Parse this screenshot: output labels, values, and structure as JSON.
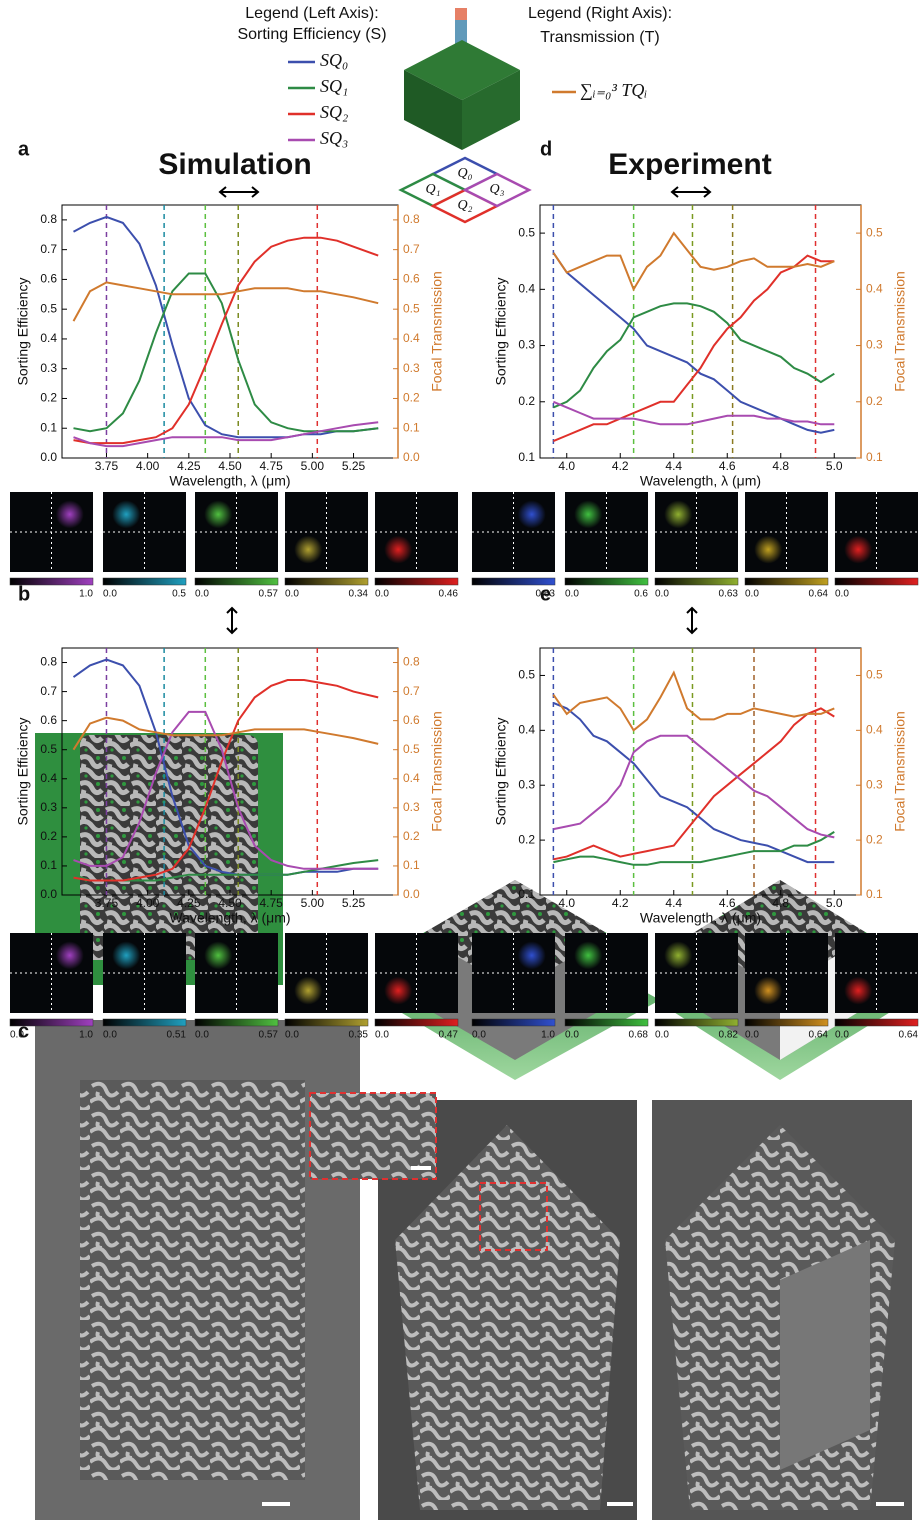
{
  "legend": {
    "left_title": "Legend (Left Axis):",
    "left_subtitle": "Sorting Efficiency (S)",
    "items": [
      {
        "label": "SQ₀",
        "color": "#3c4fad"
      },
      {
        "label": "SQ₁",
        "color": "#2e8b45"
      },
      {
        "label": "SQ₂",
        "color": "#e0302a"
      },
      {
        "label": "SQ₃",
        "color": "#a84bb0"
      }
    ],
    "right_title": "Legend (Right Axis):",
    "right_subtitle": "Transmission (T)",
    "sum_label": "∑ᵢ₌₀³ TQᵢ",
    "sum_color": "#d07a2e"
  },
  "panel_labels": [
    "a",
    "b",
    "c",
    "d",
    "e"
  ],
  "headers": [
    "Simulation",
    "Experiment"
  ],
  "quadrants": [
    "Q₀",
    "Q₁",
    "Q₂",
    "Q₃"
  ],
  "colorbar_rows": [
    [
      {
        "color": "#a040c0",
        "max": "1.0"
      },
      {
        "color": "#20a0c0",
        "min": "0.0",
        "max": "0.5"
      },
      {
        "color": "#50c040",
        "min": "0.0",
        "max": "0.57"
      },
      {
        "color": "#b0a030",
        "min": "0.0",
        "max": "0.34"
      },
      {
        "color": "#e02020",
        "min": "0.0",
        "max": "0.46"
      }
    ],
    [
      {
        "color": "#a040c0",
        "min": "0.0",
        "max": "1.0"
      },
      {
        "color": "#20a0c0",
        "min": "0.0",
        "max": "0.51"
      },
      {
        "color": "#50c040",
        "min": "0.0",
        "max": "0.57"
      },
      {
        "color": "#b0a030",
        "min": "0.0",
        "max": "0.35"
      },
      {
        "color": "#e02020",
        "min": "0.0",
        "max": "0.47"
      }
    ],
    [
      {
        "color": "#3050d0",
        "max": "0.63"
      },
      {
        "color": "#40c040",
        "min": "0.0",
        "max": "0.6"
      },
      {
        "color": "#90b030",
        "min": "0.0",
        "max": "0.63"
      },
      {
        "color": "#c0a020",
        "min": "0.0",
        "max": "0.64"
      },
      {
        "color": "#e02020",
        "min": "0.0"
      }
    ],
    [
      {
        "color": "#3050d0",
        "min": "0.0",
        "max": "1.0"
      },
      {
        "color": "#40c040",
        "min": "0.0",
        "max": "0.68"
      },
      {
        "color": "#90b030",
        "min": "0.0",
        "max": "0.82"
      },
      {
        "color": "#d09020",
        "min": "0.0",
        "max": "0.64"
      },
      {
        "color": "#e02020",
        "min": "0.0",
        "max": "0.64"
      }
    ]
  ],
  "chart_data": [
    {
      "type": "line",
      "xlabel": "Wavelength, λ (μm)",
      "ylabel": "Sorting Efficiency",
      "y2label": "Focal Transmission",
      "x": [
        3.55,
        3.65,
        3.75,
        3.85,
        3.95,
        4.05,
        4.15,
        4.25,
        4.35,
        4.45,
        4.55,
        4.65,
        4.75,
        4.85,
        4.95,
        5.05,
        5.15,
        5.25,
        5.4
      ],
      "xlim": [
        3.48,
        5.52
      ],
      "ylim": [
        0,
        0.85
      ],
      "y2lim": [
        0,
        0.85
      ],
      "xticks": [
        3.75,
        {
          "value": 4,
          "label": "4.00"
        },
        4.25,
        {
          "value": 4.5,
          "label": "4.50"
        },
        4.75,
        {
          "value": 5,
          "label": "5.00"
        },
        5.25
      ],
      "yticks": [
        {
          "value": 0,
          "label": "0.0"
        },
        0.1,
        0.2,
        0.3,
        0.4,
        0.5,
        0.6,
        0.7,
        0.8
      ],
      "y2ticks": [
        {
          "value": 0,
          "label": "0.0"
        },
        0.1,
        0.2,
        0.3,
        0.4,
        0.5,
        0.6,
        0.7,
        0.8
      ],
      "vlines": [
        {
          "x": 3.75,
          "color": "#7b3fa0"
        },
        {
          "x": 4.1,
          "color": "#1a8aa0"
        },
        {
          "x": 4.35,
          "color": "#5cc040"
        },
        {
          "x": 4.55,
          "color": "#7a8a20"
        },
        {
          "x": 5.03,
          "color": "#e03030"
        }
      ],
      "series": [
        {
          "color": "#3c4fad",
          "values": [
            0.76,
            0.79,
            0.81,
            0.79,
            0.72,
            0.58,
            0.38,
            0.2,
            0.11,
            0.08,
            0.07,
            0.07,
            0.07,
            0.07,
            0.08,
            0.08,
            0.09,
            0.09,
            0.1
          ]
        },
        {
          "color": "#2e8b45",
          "values": [
            0.1,
            0.09,
            0.1,
            0.15,
            0.26,
            0.42,
            0.56,
            0.62,
            0.62,
            0.52,
            0.33,
            0.18,
            0.12,
            0.1,
            0.09,
            0.09,
            0.09,
            0.09,
            0.1
          ]
        },
        {
          "color": "#e0302a",
          "values": [
            0.06,
            0.05,
            0.05,
            0.05,
            0.06,
            0.07,
            0.1,
            0.18,
            0.31,
            0.45,
            0.58,
            0.66,
            0.71,
            0.73,
            0.74,
            0.74,
            0.73,
            0.71,
            0.68
          ]
        },
        {
          "color": "#a84bb0",
          "values": [
            0.07,
            0.05,
            0.04,
            0.04,
            0.05,
            0.06,
            0.07,
            0.07,
            0.07,
            0.07,
            0.06,
            0.06,
            0.06,
            0.07,
            0.08,
            0.09,
            0.1,
            0.11,
            0.12
          ]
        },
        {
          "color": "#d07a2e",
          "axis": "y2",
          "values": [
            0.46,
            0.56,
            0.59,
            0.58,
            0.57,
            0.56,
            0.55,
            0.55,
            0.55,
            0.55,
            0.56,
            0.57,
            0.57,
            0.57,
            0.56,
            0.56,
            0.55,
            0.54,
            0.52
          ]
        }
      ]
    },
    {
      "type": "line",
      "xlabel": "Wavelength, λ (μm)",
      "ylabel": "Sorting Efficiency",
      "y2label": "Focal Transmission",
      "x": [
        3.55,
        3.65,
        3.75,
        3.85,
        3.95,
        4.05,
        4.15,
        4.25,
        4.35,
        4.45,
        4.55,
        4.65,
        4.75,
        4.85,
        4.95,
        5.05,
        5.15,
        5.25,
        5.4
      ],
      "xlim": [
        3.48,
        5.52
      ],
      "ylim": [
        0,
        0.85
      ],
      "y2lim": [
        0,
        0.85
      ],
      "xticks": [
        3.75,
        {
          "value": 4,
          "label": "4.00"
        },
        4.25,
        {
          "value": 4.5,
          "label": "4.50"
        },
        4.75,
        {
          "value": 5,
          "label": "5.00"
        },
        5.25
      ],
      "yticks": [
        {
          "value": 0,
          "label": "0.0"
        },
        0.1,
        0.2,
        0.3,
        0.4,
        0.5,
        0.6,
        0.7,
        0.8
      ],
      "y2ticks": [
        {
          "value": 0,
          "label": "0.0"
        },
        0.1,
        0.2,
        0.3,
        0.4,
        0.5,
        0.6,
        0.7,
        0.8
      ],
      "vlines": [
        {
          "x": 3.75,
          "color": "#7b3fa0"
        },
        {
          "x": 4.1,
          "color": "#1a8aa0"
        },
        {
          "x": 4.35,
          "color": "#5cc040"
        },
        {
          "x": 4.55,
          "color": "#7a8a20"
        },
        {
          "x": 5.03,
          "color": "#e03030"
        }
      ],
      "series": [
        {
          "color": "#3c4fad",
          "values": [
            0.75,
            0.79,
            0.81,
            0.79,
            0.72,
            0.56,
            0.34,
            0.17,
            0.1,
            0.08,
            0.07,
            0.07,
            0.07,
            0.07,
            0.08,
            0.08,
            0.08,
            0.09,
            0.09
          ]
        },
        {
          "color": "#2e8b45",
          "values": [
            0.07,
            0.05,
            0.05,
            0.05,
            0.05,
            0.05,
            0.06,
            0.07,
            0.07,
            0.07,
            0.07,
            0.07,
            0.07,
            0.07,
            0.08,
            0.09,
            0.1,
            0.11,
            0.12
          ]
        },
        {
          "color": "#e0302a",
          "values": [
            0.06,
            0.05,
            0.05,
            0.05,
            0.06,
            0.07,
            0.09,
            0.16,
            0.3,
            0.46,
            0.6,
            0.68,
            0.72,
            0.74,
            0.74,
            0.73,
            0.72,
            0.7,
            0.68
          ]
        },
        {
          "color": "#a84bb0",
          "values": [
            0.12,
            0.1,
            0.1,
            0.13,
            0.25,
            0.42,
            0.56,
            0.63,
            0.63,
            0.5,
            0.3,
            0.17,
            0.12,
            0.1,
            0.09,
            0.09,
            0.09,
            0.09,
            0.09
          ]
        },
        {
          "color": "#d07a2e",
          "axis": "y2",
          "values": [
            0.5,
            0.59,
            0.61,
            0.6,
            0.57,
            0.56,
            0.55,
            0.55,
            0.55,
            0.55,
            0.56,
            0.57,
            0.57,
            0.57,
            0.57,
            0.56,
            0.55,
            0.54,
            0.52
          ]
        }
      ]
    },
    {
      "type": "line",
      "xlabel": "Wavelength, λ (μm)",
      "ylabel": "Sorting Efficiency",
      "y2label": "Focal Transmission",
      "x": [
        3.95,
        4.0,
        4.05,
        4.1,
        4.15,
        4.2,
        4.25,
        4.3,
        4.35,
        4.4,
        4.45,
        4.5,
        4.55,
        4.6,
        4.65,
        4.7,
        4.75,
        4.8,
        4.85,
        4.9,
        4.95,
        5.0
      ],
      "xlim": [
        3.9,
        5.1
      ],
      "ylim": [
        0.1,
        0.55
      ],
      "y2lim": [
        0.1,
        0.55
      ],
      "xticks": [
        {
          "value": 4,
          "label": "4.0"
        },
        4.2,
        4.4,
        4.6,
        4.8,
        {
          "value": 5,
          "label": "5.0"
        }
      ],
      "yticks": [
        0.1,
        0.2,
        0.3,
        0.4,
        0.5
      ],
      "y2ticks": [
        0.1,
        0.2,
        0.3,
        0.4,
        0.5
      ],
      "vlines": [
        {
          "x": 3.95,
          "color": "#3c4fad"
        },
        {
          "x": 4.25,
          "color": "#5cc040"
        },
        {
          "x": 4.47,
          "color": "#7a9a20"
        },
        {
          "x": 4.62,
          "color": "#8a7a20"
        },
        {
          "x": 4.93,
          "color": "#e03030"
        }
      ],
      "series": [
        {
          "color": "#3c4fad",
          "values": [
            0.465,
            0.43,
            0.41,
            0.39,
            0.37,
            0.35,
            0.33,
            0.3,
            0.29,
            0.28,
            0.27,
            0.25,
            0.24,
            0.22,
            0.2,
            0.19,
            0.18,
            0.17,
            0.16,
            0.15,
            0.145,
            0.15
          ]
        },
        {
          "color": "#2e8b45",
          "values": [
            0.19,
            0.2,
            0.22,
            0.26,
            0.29,
            0.31,
            0.35,
            0.36,
            0.37,
            0.375,
            0.375,
            0.37,
            0.36,
            0.34,
            0.31,
            0.3,
            0.29,
            0.28,
            0.26,
            0.25,
            0.235,
            0.25
          ]
        },
        {
          "color": "#e0302a",
          "values": [
            0.13,
            0.14,
            0.15,
            0.16,
            0.16,
            0.17,
            0.18,
            0.19,
            0.2,
            0.2,
            0.23,
            0.26,
            0.3,
            0.33,
            0.35,
            0.38,
            0.4,
            0.43,
            0.44,
            0.46,
            0.45,
            0.45
          ]
        },
        {
          "color": "#a84bb0",
          "values": [
            0.2,
            0.19,
            0.18,
            0.17,
            0.17,
            0.17,
            0.17,
            0.165,
            0.16,
            0.16,
            0.16,
            0.165,
            0.17,
            0.175,
            0.175,
            0.175,
            0.17,
            0.17,
            0.165,
            0.165,
            0.16,
            0.16
          ]
        },
        {
          "color": "#d07a2e",
          "axis": "y2",
          "values": [
            0.465,
            0.43,
            0.44,
            0.45,
            0.46,
            0.46,
            0.4,
            0.44,
            0.46,
            0.5,
            0.47,
            0.44,
            0.435,
            0.44,
            0.45,
            0.455,
            0.44,
            0.44,
            0.44,
            0.445,
            0.44,
            0.45
          ]
        }
      ]
    },
    {
      "type": "line",
      "xlabel": "Wavelength, λ (μm)",
      "ylabel": "Sorting Efficiency",
      "y2label": "Focal Transmission",
      "x": [
        3.95,
        4.0,
        4.05,
        4.1,
        4.15,
        4.2,
        4.25,
        4.3,
        4.35,
        4.4,
        4.45,
        4.5,
        4.55,
        4.6,
        4.65,
        4.7,
        4.75,
        4.8,
        4.85,
        4.9,
        4.95,
        5.0
      ],
      "xlim": [
        3.9,
        5.1
      ],
      "ylim": [
        0.1,
        0.55
      ],
      "y2lim": [
        0.1,
        0.55
      ],
      "xticks": [
        {
          "value": 4,
          "label": "4.0"
        },
        4.2,
        4.4,
        4.6,
        4.8,
        {
          "value": 5,
          "label": "5.0"
        }
      ],
      "yticks": [
        0.1,
        0.2,
        0.3,
        0.4,
        0.5
      ],
      "y2ticks": [
        0.1,
        0.2,
        0.3,
        0.4,
        0.5
      ],
      "vlines": [
        {
          "x": 3.95,
          "color": "#3c4fad"
        },
        {
          "x": 4.25,
          "color": "#5cc040"
        },
        {
          "x": 4.47,
          "color": "#7a9a20"
        },
        {
          "x": 4.7,
          "color": "#a0602a"
        },
        {
          "x": 4.93,
          "color": "#e03030"
        }
      ],
      "series": [
        {
          "color": "#3c4fad",
          "values": [
            0.45,
            0.44,
            0.42,
            0.39,
            0.38,
            0.36,
            0.34,
            0.31,
            0.28,
            0.27,
            0.26,
            0.24,
            0.22,
            0.21,
            0.2,
            0.195,
            0.19,
            0.18,
            0.17,
            0.16,
            0.16,
            0.16
          ]
        },
        {
          "color": "#2e8b45",
          "values": [
            0.16,
            0.165,
            0.17,
            0.17,
            0.165,
            0.16,
            0.155,
            0.155,
            0.16,
            0.16,
            0.16,
            0.16,
            0.165,
            0.17,
            0.175,
            0.18,
            0.18,
            0.18,
            0.19,
            0.19,
            0.2,
            0.215
          ]
        },
        {
          "color": "#e0302a",
          "values": [
            0.165,
            0.17,
            0.18,
            0.19,
            0.18,
            0.17,
            0.175,
            0.18,
            0.185,
            0.19,
            0.22,
            0.25,
            0.28,
            0.3,
            0.32,
            0.34,
            0.36,
            0.38,
            0.41,
            0.43,
            0.44,
            0.425
          ]
        },
        {
          "color": "#a84bb0",
          "values": [
            0.22,
            0.225,
            0.23,
            0.25,
            0.27,
            0.3,
            0.36,
            0.38,
            0.39,
            0.39,
            0.39,
            0.37,
            0.35,
            0.33,
            0.31,
            0.29,
            0.28,
            0.26,
            0.24,
            0.22,
            0.21,
            0.205
          ]
        },
        {
          "color": "#d07a2e",
          "axis": "y2",
          "values": [
            0.465,
            0.43,
            0.45,
            0.455,
            0.46,
            0.44,
            0.4,
            0.42,
            0.46,
            0.505,
            0.44,
            0.42,
            0.42,
            0.43,
            0.43,
            0.44,
            0.435,
            0.43,
            0.425,
            0.43,
            0.43,
            0.44
          ]
        }
      ]
    }
  ]
}
